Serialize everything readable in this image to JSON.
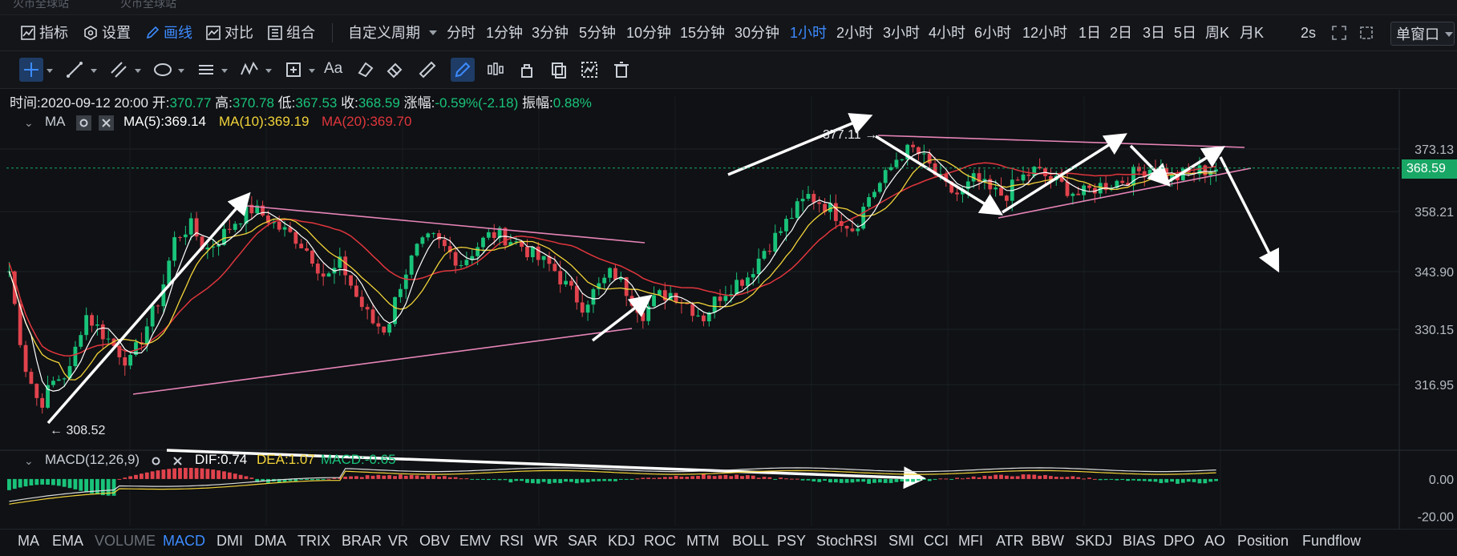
{
  "top_tabs": [
    "火币全球站",
    "火币全球站"
  ],
  "toolbar": {
    "indicator_label": "指标",
    "settings_label": "设置",
    "draw_label": "画线",
    "compare_label": "对比",
    "combo_label": "组合",
    "custom_period_label": "自定义周期",
    "periods": [
      "分时",
      "1分钟",
      "3分钟",
      "5分钟",
      "10分钟",
      "15分钟",
      "30分钟",
      "1小时",
      "2小时",
      "3小时",
      "4小时",
      "6小时",
      "12小时",
      "1日",
      "2日",
      "3日",
      "5日",
      "周K",
      "月K"
    ],
    "active_period": "1小时",
    "refresh_label": "2s",
    "window_label": "单窗口"
  },
  "info": {
    "time_label": "时间:",
    "time": "2020-09-12 20:00",
    "open_label": "开:",
    "open": "370.77",
    "high_label": "高:",
    "high": "370.78",
    "low_label": "低:",
    "low": "367.53",
    "close_label": "收:",
    "close": "368.59",
    "change_label": "涨幅:",
    "change": "-0.59%(-2.18)",
    "amp_label": "振幅:",
    "amp": "0.88%"
  },
  "ma_legend": {
    "name": "MA",
    "ma5": "MA(5):369.14",
    "ma10": "MA(10):369.19",
    "ma20": "MA(20):369.70"
  },
  "macd_legend": {
    "name": "MACD(12,26,9)",
    "dif": "DIF:0.74",
    "dea": "DEA:1.07",
    "macd": "MACD:-0.65"
  },
  "indicator_tabs": [
    "MA",
    "EMA",
    "VOLUME",
    "MACD",
    "DMI",
    "DMA",
    "TRIX",
    "BRAR",
    "VR",
    "OBV",
    "EMV",
    "RSI",
    "WR",
    "SAR",
    "KDJ",
    "ROC",
    "MTM",
    "BOLL",
    "PSY",
    "StochRSI",
    "SMI",
    "CCI",
    "MFI",
    "ATR",
    "BBW",
    "SKDJ",
    "BIAS",
    "DPO",
    "AO",
    "Position",
    "Fundflow"
  ],
  "active_indicator": "MACD",
  "colors": {
    "up": "#19c37a",
    "down": "#e0434d",
    "ma5": "#ffffff",
    "ma10": "#f2d33a",
    "ma20": "#e0363d",
    "trend": "#e784b8",
    "arrow": "#ffffff",
    "accent": "#3d8bff"
  },
  "chart_data": {
    "type": "candlestick",
    "y_axis_labels": [
      "373.13",
      "358.21",
      "343.90",
      "330.15",
      "316.95"
    ],
    "ylim": [
      304,
      380
    ],
    "current_price": "368.59",
    "annotations": {
      "low": "308.52",
      "high": "377.11"
    },
    "close_series": [
      344,
      322,
      312,
      318,
      320,
      334,
      330,
      326,
      322,
      330,
      338,
      352,
      355,
      349,
      352,
      356,
      359,
      357,
      354,
      352,
      348,
      342,
      346,
      338,
      332,
      330,
      342,
      349,
      352,
      349,
      346,
      350,
      353,
      352,
      350,
      347,
      345,
      340,
      336,
      340,
      344,
      339,
      334,
      338,
      339,
      336,
      333,
      338,
      341,
      343,
      349,
      353,
      358,
      362,
      360,
      357,
      354,
      362,
      366,
      372,
      373,
      369,
      364,
      362,
      366,
      363,
      362,
      366,
      368,
      366,
      364,
      362,
      364,
      365,
      366,
      368,
      369,
      366,
      367,
      368,
      368.59
    ],
    "macd": {
      "y_axis_labels": [
        "0.00",
        "-20.00"
      ],
      "ylim": [
        -25,
        12
      ]
    }
  }
}
